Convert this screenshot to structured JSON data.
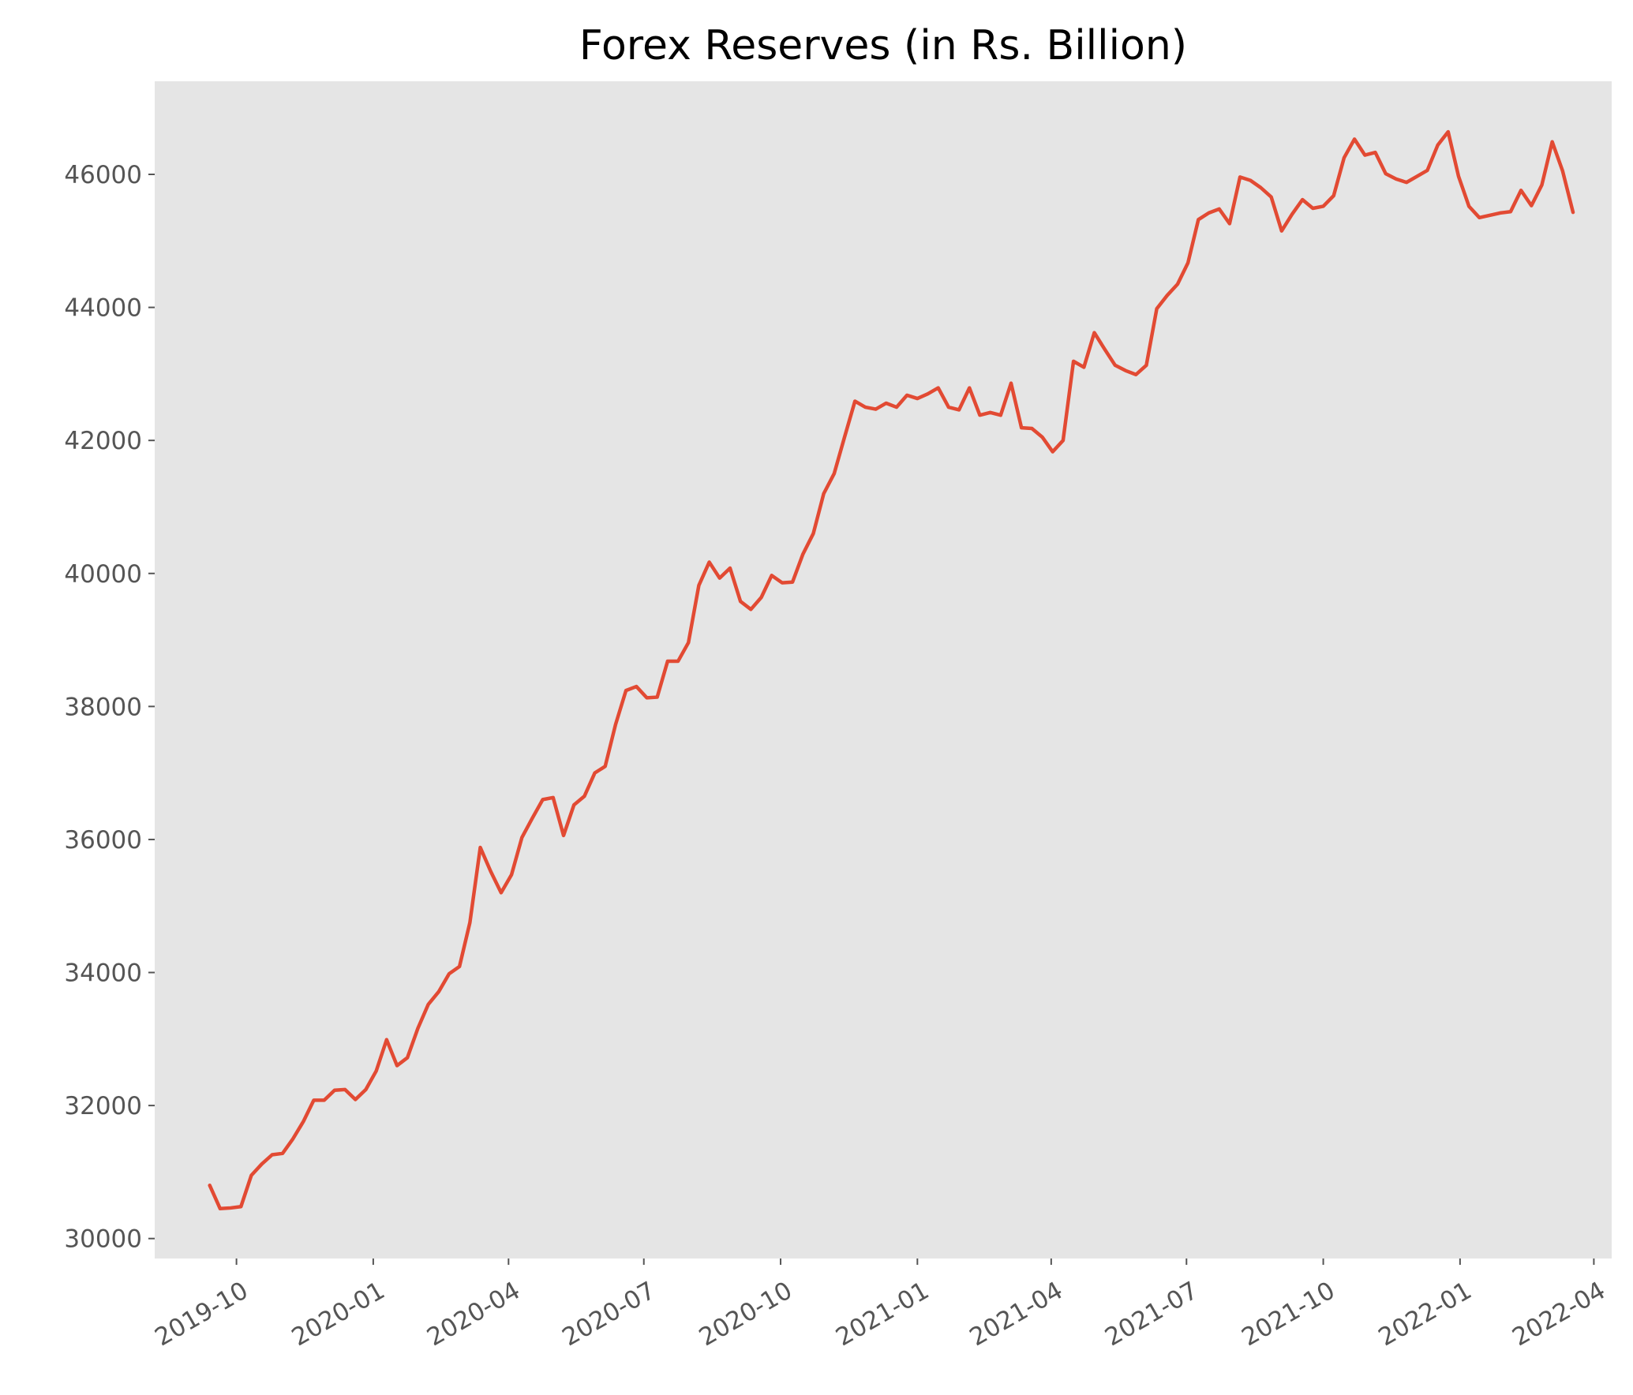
{
  "chart_data": {
    "type": "line",
    "title": "Forex Reserves (in Rs. Billion)",
    "xlabel": "",
    "ylabel": "",
    "grid": false,
    "background_color": "#E5E5E5",
    "line_color": "#E24A33",
    "tick_label_color": "#555555",
    "xlim": [
      "2019-08-07",
      "2022-04-13"
    ],
    "ylim": [
      29700,
      47400
    ],
    "x_ticks": [
      "2019-10",
      "2020-01",
      "2020-04",
      "2020-07",
      "2020-10",
      "2021-01",
      "2021-04",
      "2021-07",
      "2021-10",
      "2022-01",
      "2022-04"
    ],
    "y_ticks": [
      "30000",
      "32000",
      "34000",
      "36000",
      "38000",
      "40000",
      "42000",
      "44000",
      "46000"
    ],
    "series": [
      {
        "x": [
          "2019-09-13",
          "2019-09-20",
          "2019-09-27",
          "2019-10-04",
          "2019-10-11",
          "2019-10-18",
          "2019-10-25",
          "2019-11-01",
          "2019-11-08",
          "2019-11-15",
          "2019-11-22",
          "2019-11-29",
          "2019-12-06",
          "2019-12-13",
          "2019-12-20",
          "2019-12-27",
          "2020-01-03",
          "2020-01-10",
          "2020-01-17",
          "2020-01-24",
          "2020-01-31",
          "2020-02-07",
          "2020-02-14",
          "2020-02-21",
          "2020-02-28",
          "2020-03-06",
          "2020-03-13",
          "2020-03-20",
          "2020-03-27",
          "2020-04-03",
          "2020-04-10",
          "2020-04-17",
          "2020-04-24",
          "2020-05-01",
          "2020-05-08",
          "2020-05-15",
          "2020-05-22",
          "2020-05-29",
          "2020-06-05",
          "2020-06-12",
          "2020-06-19",
          "2020-06-26",
          "2020-07-03",
          "2020-07-10",
          "2020-07-17",
          "2020-07-24",
          "2020-07-31",
          "2020-08-07",
          "2020-08-14",
          "2020-08-21",
          "2020-08-28",
          "2020-09-04",
          "2020-09-11",
          "2020-09-18",
          "2020-09-25",
          "2020-10-02",
          "2020-10-09",
          "2020-10-16",
          "2020-10-23",
          "2020-10-30",
          "2020-11-06",
          "2020-11-13",
          "2020-11-20",
          "2020-11-27",
          "2020-12-04",
          "2020-12-11",
          "2020-12-18",
          "2020-12-25",
          "2021-01-01",
          "2021-01-08",
          "2021-01-15",
          "2021-01-22",
          "2021-01-29",
          "2021-02-05",
          "2021-02-12",
          "2021-02-19",
          "2021-02-26",
          "2021-03-05",
          "2021-03-12",
          "2021-03-19",
          "2021-03-26",
          "2021-04-02",
          "2021-04-09",
          "2021-04-16",
          "2021-04-23",
          "2021-04-30",
          "2021-05-07",
          "2021-05-14",
          "2021-05-21",
          "2021-05-28",
          "2021-06-04",
          "2021-06-11",
          "2021-06-18",
          "2021-06-25",
          "2021-07-02",
          "2021-07-09",
          "2021-07-16",
          "2021-07-23",
          "2021-07-30",
          "2021-08-06",
          "2021-08-13",
          "2021-08-20",
          "2021-08-27",
          "2021-09-03",
          "2021-09-10",
          "2021-09-17",
          "2021-09-24",
          "2021-10-01",
          "2021-10-08",
          "2021-10-15",
          "2021-10-22",
          "2021-10-29",
          "2021-11-05",
          "2021-11-12",
          "2021-11-19",
          "2021-11-26",
          "2021-12-03",
          "2021-12-10",
          "2021-12-17",
          "2021-12-24",
          "2021-12-31",
          "2022-01-07",
          "2022-01-14",
          "2022-01-28",
          "2022-02-04",
          "2022-02-11",
          "2022-02-18",
          "2022-02-25",
          "2022-03-04",
          "2022-03-11",
          "2022-03-18"
        ],
        "values": [
          30800,
          30450,
          30460,
          30480,
          30950,
          31120,
          31260,
          31280,
          31500,
          31760,
          32080,
          32080,
          32230,
          32240,
          32090,
          32240,
          32520,
          32990,
          32600,
          32720,
          33160,
          33520,
          33710,
          33980,
          34090,
          34750,
          35880,
          35520,
          35200,
          35470,
          36030,
          36320,
          36600,
          36630,
          36060,
          36520,
          36650,
          37000,
          37100,
          37730,
          38240,
          38300,
          38130,
          38140,
          38680,
          38680,
          38960,
          39820,
          40170,
          39930,
          40080,
          39580,
          39460,
          39640,
          39970,
          39860,
          39870,
          40290,
          40600,
          41200,
          41500,
          42050,
          42590,
          42500,
          42470,
          42560,
          42500,
          42680,
          42630,
          42700,
          42790,
          42500,
          42460,
          42790,
          42380,
          42420,
          42380,
          42860,
          42190,
          42180,
          42050,
          41830,
          42000,
          43190,
          43100,
          43620,
          43370,
          43130,
          43050,
          42990,
          43130,
          43980,
          44180,
          44350,
          44670,
          45320,
          45420,
          45480,
          45260,
          45960,
          45910,
          45800,
          45660,
          45150,
          45400,
          45620,
          45490,
          45520,
          45680,
          46250,
          46530,
          46290,
          46330,
          46010,
          45930,
          45880,
          45970,
          46060,
          46440,
          46640,
          45970,
          45520,
          45350,
          45420,
          45440,
          45760,
          45530,
          45840,
          46490,
          46050,
          45430
        ]
      }
    ]
  }
}
